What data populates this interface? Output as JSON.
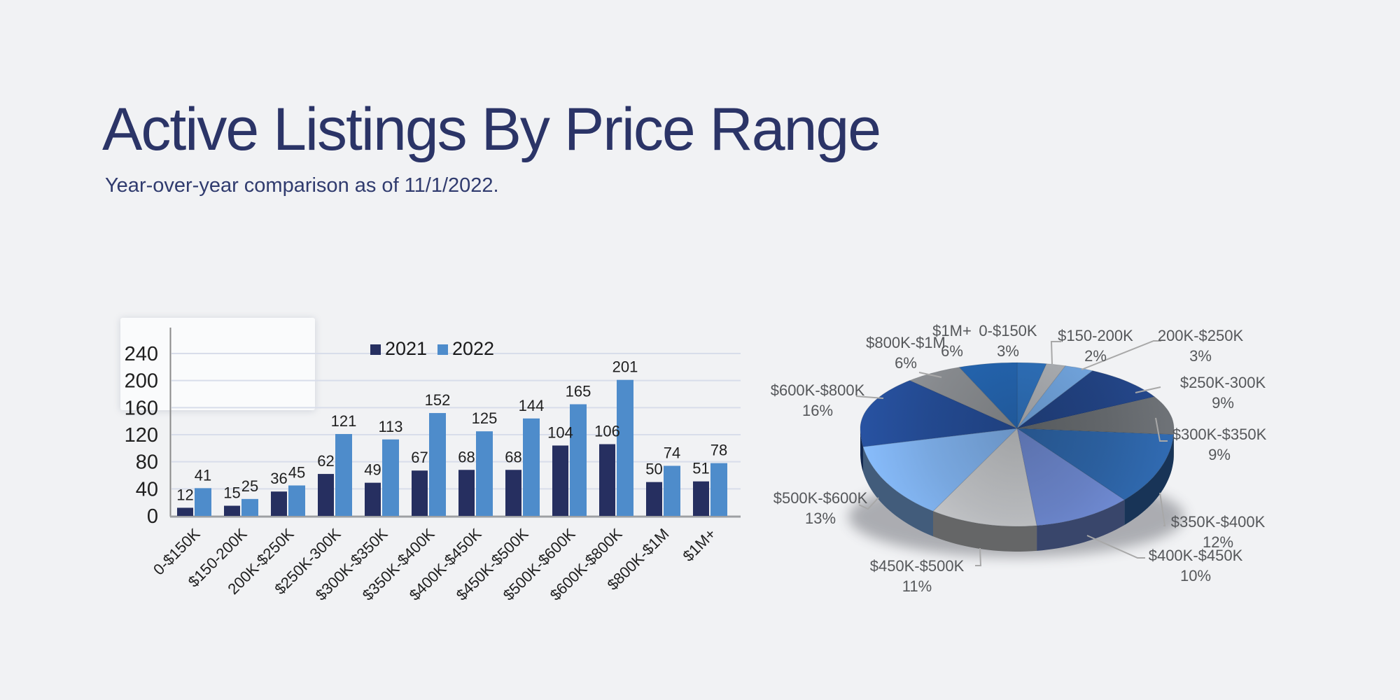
{
  "page": {
    "title": "Active Listings By Price Range",
    "subtitle": "Year-over-year comparison as of 11/1/2022."
  },
  "colors": {
    "background": "#F1F2F4",
    "title_text": "#2B3467",
    "bar_2021": "#262F60",
    "bar_2022": "#4E8CCB",
    "gridline": "#D8DDEA",
    "axis_line": "#8A8A8A",
    "value_label_text": "#1F1F1F",
    "pie_label_text": "#55575A",
    "leader_line": "#A8A8A8"
  },
  "chart_data": [
    {
      "type": "bar",
      "title": "",
      "categories": [
        "0-$150K",
        "$150-200K",
        "200K-$250K",
        "$250K-300K",
        "$300K-$350K",
        "$350K-$400K",
        "$400K-$450K",
        "$450K-$500K",
        "$500K-$600K",
        "$600K-$800K",
        "$800K-$1M",
        "$1M+"
      ],
      "series": [
        {
          "name": "2021",
          "color": "#262F60",
          "values": [
            12,
            15,
            36,
            62,
            49,
            67,
            68,
            68,
            104,
            106,
            50,
            51
          ]
        },
        {
          "name": "2022",
          "color": "#4E8CCB",
          "values": [
            41,
            25,
            45,
            121,
            113,
            152,
            125,
            144,
            165,
            201,
            74,
            78
          ]
        }
      ],
      "xlabel": "",
      "ylabel": "",
      "ylim": [
        0,
        240
      ],
      "yticks": [
        0,
        40,
        80,
        120,
        160,
        200,
        240
      ],
      "grid": true,
      "legend_position": "top",
      "data_labels": true
    },
    {
      "type": "pie",
      "style": "3d",
      "labels": [
        "0-$150K",
        "$150-200K",
        "200K-$250K",
        "$250K-300K",
        "$300K-$350K",
        "$350K-$400K",
        "$400K-$450K",
        "$450K-$500K",
        "$500K-$600K",
        "$600K-$800K",
        "$800K-$1M",
        "$1M+"
      ],
      "values": [
        3,
        2,
        3,
        9,
        9,
        12,
        10,
        11,
        13,
        16,
        6,
        6
      ],
      "percent_labels": [
        "3%",
        "2%",
        "3%",
        "9%",
        "9%",
        "12%",
        "10%",
        "11%",
        "13%",
        "16%",
        "6%",
        "6%"
      ],
      "slice_colors": [
        "#2E6FB8",
        "#A9ACB0",
        "#6FA1D9",
        "#21417F",
        "#62666A",
        "#2B5F9E",
        "#6780C3",
        "#B7B9BC",
        "#78A7DF",
        "#23498F",
        "#86898D",
        "#2464AE"
      ]
    }
  ]
}
